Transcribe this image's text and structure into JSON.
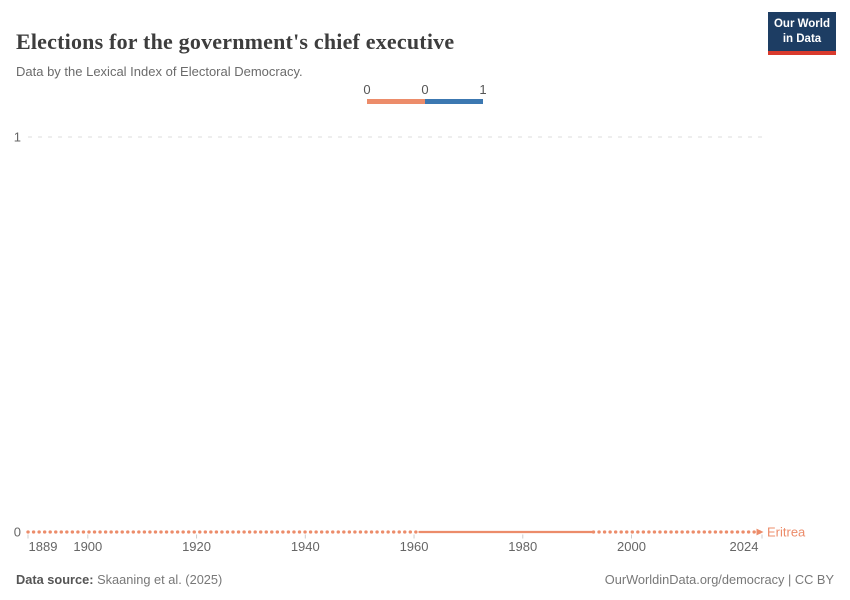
{
  "header": {
    "title": "Elections for the government's chief executive",
    "subtitle": "Data by the Lexical Index of Electoral Democracy.",
    "logo": {
      "line1": "Our World",
      "line2": "in Data",
      "bg_color": "#1d3d63",
      "bar_color": "#d93a2d"
    }
  },
  "legend": {
    "labels": [
      "0",
      "0",
      "1"
    ],
    "segments": [
      {
        "bin": "0",
        "color": "#ec8c6a"
      },
      {
        "bin": "1",
        "color": "#3c78b1"
      }
    ]
  },
  "chart_data": {
    "type": "line",
    "title": "Elections for the government's chief executive",
    "subtitle": "Data by the Lexical Index of Electoral Democracy.",
    "entity_label": "Eritrea",
    "x_range": [
      1889,
      2024
    ],
    "y_range": [
      0,
      1
    ],
    "x_ticks": [
      1889,
      1900,
      1920,
      1940,
      1960,
      1980,
      2000,
      2024
    ],
    "y_ticks": [
      0,
      1
    ],
    "grid": "dashed horizontal gridline at y=1; legend centered top",
    "series": [
      {
        "name": "Eritrea",
        "color": "#ec8c6a",
        "constant_value": 0,
        "segments": [
          {
            "from": 1889,
            "to": 1961,
            "value": 0,
            "style": "yearly-dot-markers"
          },
          {
            "from": 1961,
            "to": 1993,
            "value": 0,
            "style": "solid-no-markers"
          },
          {
            "from": 1993,
            "to": 2024,
            "value": 0,
            "style": "yearly-dot-markers"
          }
        ]
      }
    ],
    "colors": {
      "grid_line": "#dcdcdc",
      "tick_mark": "#cccccc",
      "tick_text": "#666666"
    }
  },
  "footer": {
    "source_label": "Data source:",
    "source_value": "Skaaning et al. (2025)",
    "link_text": "OurWorldinData.org/democracy | CC BY"
  }
}
